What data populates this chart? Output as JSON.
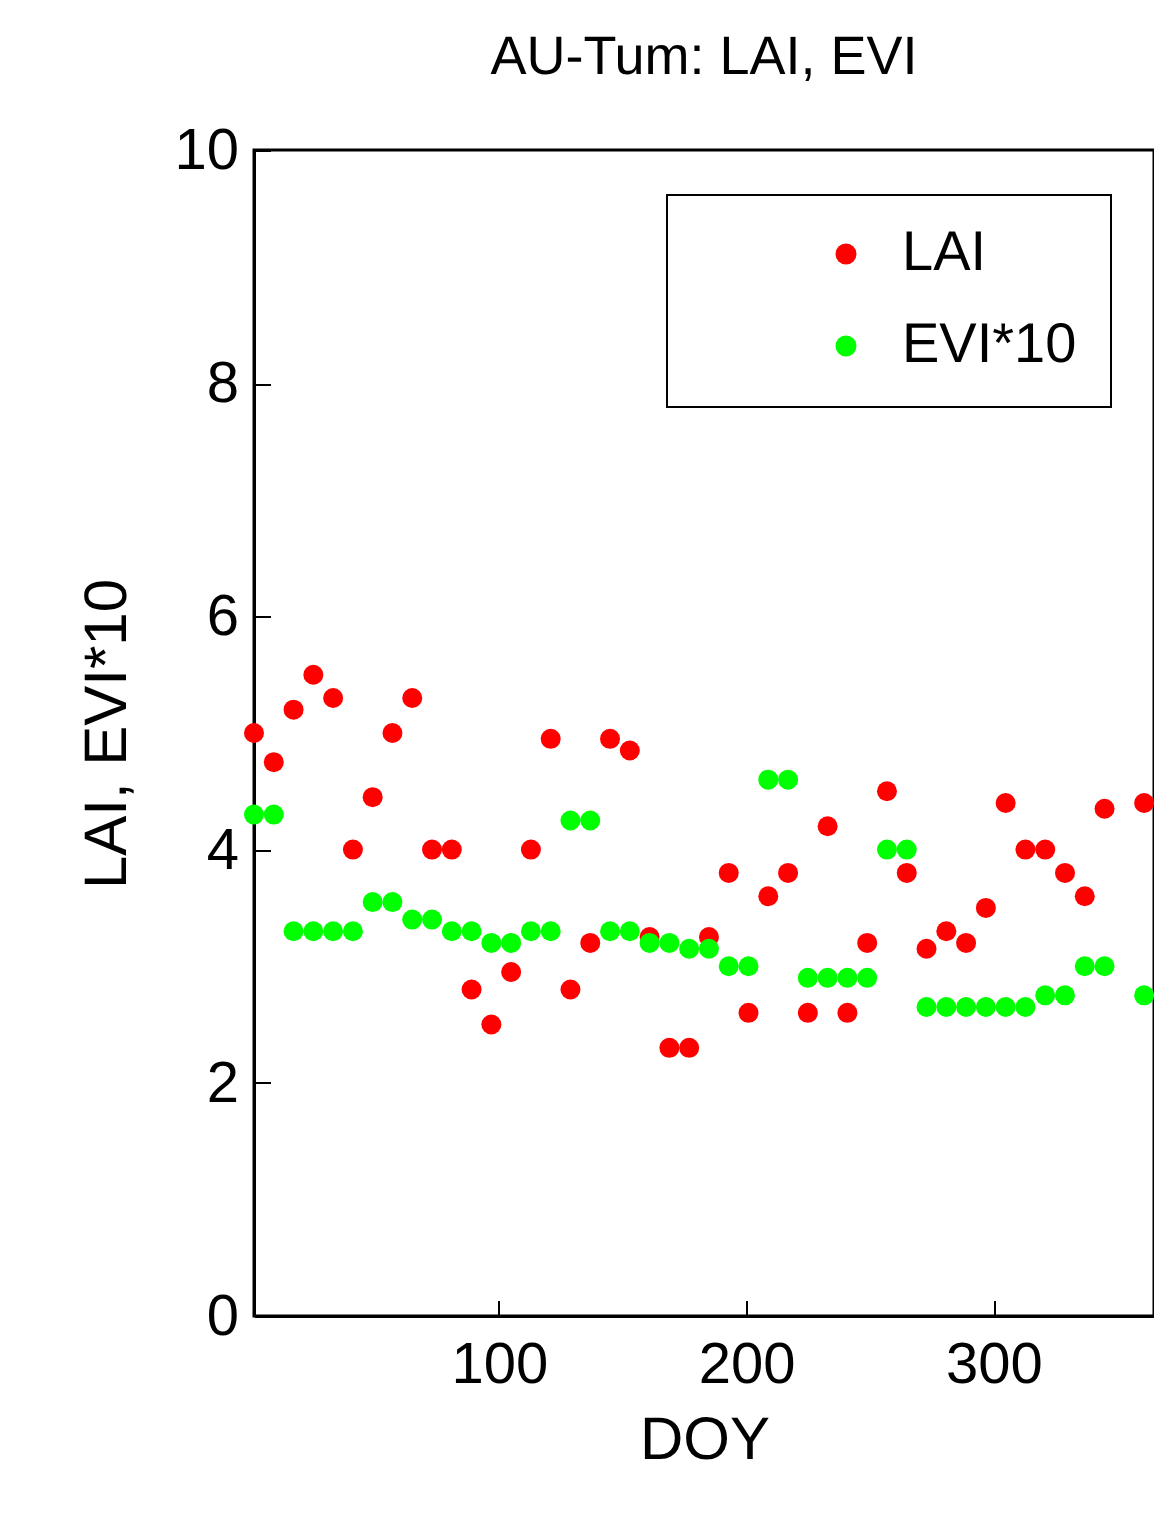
{
  "chart_data": {
    "type": "scatter",
    "title": "AU-Tum: LAI, EVI",
    "xlabel": "DOY",
    "ylabel": "LAI, EVI*10",
    "xlim": [
      1,
      365
    ],
    "xticks": [
      100,
      200,
      300
    ],
    "ylim": [
      0,
      10
    ],
    "yticks": [
      0,
      2,
      4,
      6,
      8,
      10
    ],
    "legend": "top right",
    "marker": "circle",
    "grid": false,
    "x": [
      1,
      9,
      17,
      25,
      33,
      41,
      49,
      57,
      65,
      73,
      81,
      89,
      97,
      105,
      113,
      121,
      129,
      137,
      145,
      153,
      161,
      169,
      177,
      185,
      193,
      201,
      209,
      217,
      225,
      233,
      241,
      249,
      257,
      265,
      273,
      281,
      289,
      297,
      305,
      313,
      321,
      329,
      337,
      345,
      353,
      361
    ],
    "series": [
      {
        "name": "LAI",
        "color": "#ff0000",
        "values": [
          5.0,
          4.75,
          5.2,
          5.5,
          5.3,
          4.0,
          4.45,
          5.0,
          5.3,
          4.0,
          4.0,
          2.8,
          2.5,
          2.95,
          4.0,
          4.95,
          2.8,
          3.2,
          4.95,
          4.85,
          3.25,
          2.3,
          2.3,
          3.25,
          3.8,
          2.6,
          3.6,
          3.8,
          2.6,
          4.2,
          2.6,
          3.2,
          4.5,
          3.8,
          3.15,
          3.3,
          3.2,
          3.5,
          4.4,
          4.0,
          4.0,
          3.8,
          3.6,
          4.35,
          null,
          4.4
        ]
      },
      {
        "name": "EVI*10",
        "color": "#00ff00",
        "values": [
          4.3,
          4.3,
          3.3,
          3.3,
          3.3,
          3.3,
          3.55,
          3.55,
          3.4,
          3.4,
          3.3,
          3.3,
          3.2,
          3.2,
          3.3,
          3.3,
          4.25,
          4.25,
          3.3,
          3.3,
          3.2,
          3.2,
          3.15,
          3.15,
          3.0,
          3.0,
          4.6,
          4.6,
          2.9,
          2.9,
          2.9,
          2.9,
          4.0,
          4.0,
          2.65,
          2.65,
          2.65,
          2.65,
          2.65,
          2.65,
          2.75,
          2.75,
          3.0,
          3.0,
          null,
          2.75
        ]
      }
    ]
  }
}
